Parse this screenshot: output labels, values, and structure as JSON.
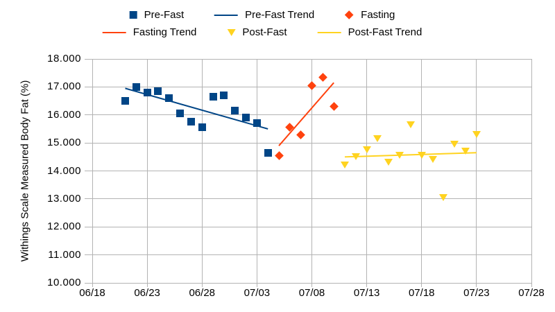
{
  "chart_data": {
    "type": "scatter",
    "title": "",
    "xlabel": "",
    "ylabel": "Withings Scale Measured Body Fat (%)",
    "ylim": [
      10,
      18
    ],
    "ytick_labels": [
      "10.000",
      "11.000",
      "12.000",
      "13.000",
      "14.000",
      "15.000",
      "16.000",
      "17.000",
      "18.000"
    ],
    "xtick_labels": [
      "06/18",
      "06/23",
      "06/28",
      "07/03",
      "07/08",
      "07/13",
      "07/18",
      "07/23",
      "07/28"
    ],
    "x_axis_start_date": "06/18",
    "x_axis_span_days": 40,
    "grid": true,
    "legend_position": "top",
    "colors": {
      "grid": "#b3b3b3",
      "axis": "#b3b3b3",
      "text": "#000000",
      "pre_fast": "#004586",
      "fasting": "#ff420e",
      "post_fast": "#ffd320"
    },
    "series": [
      {
        "name": "Pre-Fast",
        "marker": "square",
        "color": "#004586",
        "points": [
          {
            "date": "06/21",
            "value": 16.5
          },
          {
            "date": "06/22",
            "value": 17.0
          },
          {
            "date": "06/23",
            "value": 16.8
          },
          {
            "date": "06/24",
            "value": 16.85
          },
          {
            "date": "06/25",
            "value": 16.6
          },
          {
            "date": "06/26",
            "value": 16.05
          },
          {
            "date": "06/27",
            "value": 15.75
          },
          {
            "date": "06/28",
            "value": 15.55
          },
          {
            "date": "06/29",
            "value": 16.65
          },
          {
            "date": "06/30",
            "value": 16.7
          },
          {
            "date": "07/01",
            "value": 16.15
          },
          {
            "date": "07/02",
            "value": 15.9
          },
          {
            "date": "07/03",
            "value": 15.7
          },
          {
            "date": "07/04",
            "value": 14.65
          }
        ]
      },
      {
        "name": "Fasting",
        "marker": "diamond",
        "color": "#ff420e",
        "points": [
          {
            "date": "07/05",
            "value": 14.55
          },
          {
            "date": "07/06",
            "value": 15.55
          },
          {
            "date": "07/07",
            "value": 15.3
          },
          {
            "date": "07/08",
            "value": 17.05
          },
          {
            "date": "07/09",
            "value": 17.35
          },
          {
            "date": "07/10",
            "value": 16.3
          }
        ]
      },
      {
        "name": "Post-Fast",
        "marker": "triangle-down",
        "color": "#ffd320",
        "points": [
          {
            "date": "07/11",
            "value": 14.2
          },
          {
            "date": "07/12",
            "value": 14.5
          },
          {
            "date": "07/13",
            "value": 14.75
          },
          {
            "date": "07/14",
            "value": 15.15
          },
          {
            "date": "07/15",
            "value": 14.3
          },
          {
            "date": "07/16",
            "value": 14.55
          },
          {
            "date": "07/17",
            "value": 15.65
          },
          {
            "date": "07/18",
            "value": 14.55
          },
          {
            "date": "07/19",
            "value": 14.4
          },
          {
            "date": "07/20",
            "value": 13.05
          },
          {
            "date": "07/21",
            "value": 14.95
          },
          {
            "date": "07/22",
            "value": 14.7
          },
          {
            "date": "07/23",
            "value": 15.3
          }
        ]
      }
    ],
    "trend_lines": [
      {
        "name": "Pre-Fast Trend",
        "color": "#004586",
        "start": {
          "date": "06/21",
          "value": 16.95
        },
        "end": {
          "date": "07/04",
          "value": 15.5
        }
      },
      {
        "name": "Fasting Trend",
        "color": "#ff420e",
        "start": {
          "date": "07/05",
          "value": 14.9
        },
        "end": {
          "date": "07/10",
          "value": 17.15
        }
      },
      {
        "name": "Post-Fast Trend",
        "color": "#ffd320",
        "start": {
          "date": "07/11",
          "value": 14.5
        },
        "end": {
          "date": "07/23",
          "value": 14.65
        }
      }
    ],
    "legend": [
      {
        "label": "Pre-Fast",
        "marker": "square",
        "color": "#004586"
      },
      {
        "label": "Pre-Fast Trend",
        "marker": "line",
        "color": "#004586"
      },
      {
        "label": "Fasting",
        "marker": "diamond",
        "color": "#ff420e"
      },
      {
        "label": "Fasting Trend",
        "marker": "line",
        "color": "#ff420e"
      },
      {
        "label": "Post-Fast",
        "marker": "triangle-down",
        "color": "#ffd320"
      },
      {
        "label": "Post-Fast Trend",
        "marker": "line",
        "color": "#ffd320"
      }
    ]
  }
}
